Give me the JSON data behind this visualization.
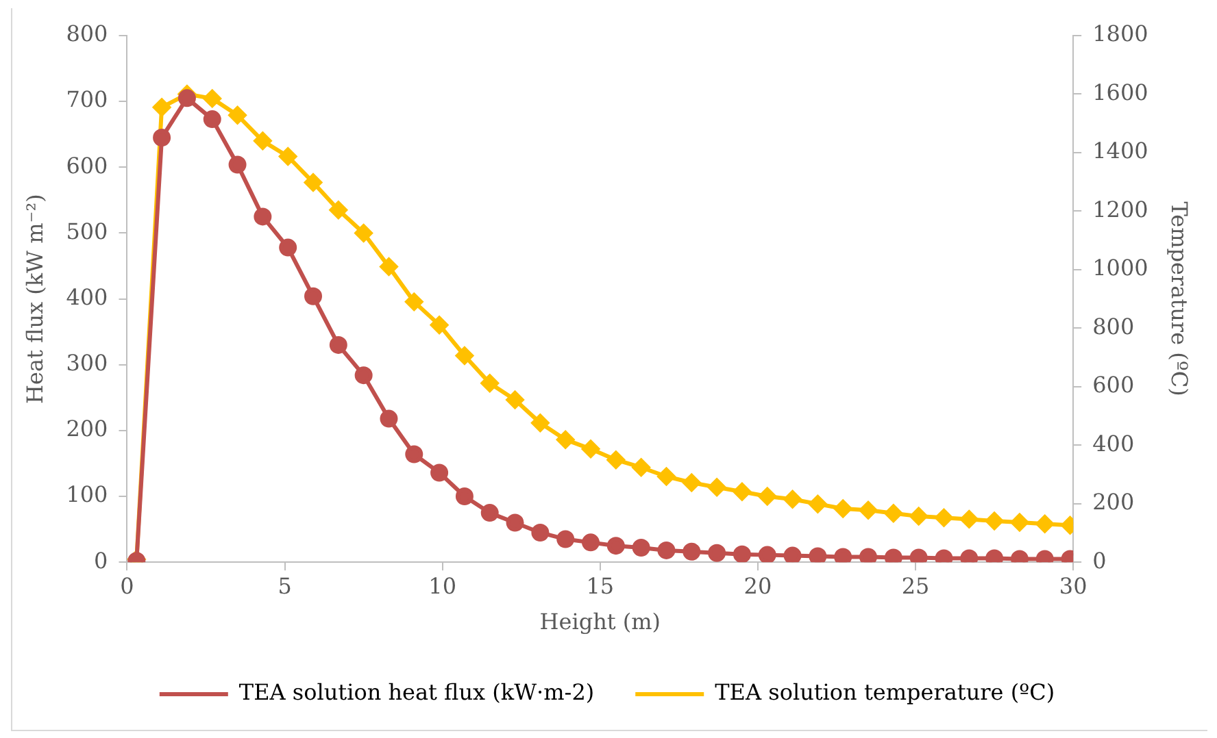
{
  "chart_data": {
    "type": "line",
    "xlabel": "Height (m)",
    "ylabel": "Heat flux (kW m⁻²)",
    "y2label": "Temperature (ºC)",
    "x": [
      0.3,
      1.1,
      1.9,
      2.7,
      3.5,
      4.3,
      5.1,
      5.9,
      6.7,
      7.5,
      8.3,
      9.1,
      9.9,
      10.7,
      11.5,
      12.3,
      13.1,
      13.9,
      14.7,
      15.5,
      16.3,
      17.1,
      17.9,
      18.7,
      19.5,
      20.3,
      21.1,
      21.9,
      22.7,
      23.5,
      24.3,
      25.1,
      25.9,
      26.7,
      27.5,
      28.3,
      29.1,
      29.9
    ],
    "series": [
      {
        "name": "TEA solution heat flux (kW·m-2)",
        "color": "#c0504d",
        "marker": "circle",
        "values": [
          2,
          645,
          705,
          673,
          604,
          525,
          478,
          404,
          330,
          284,
          218,
          164,
          136,
          100,
          75,
          60,
          45,
          35,
          30,
          25,
          22,
          18,
          16,
          14,
          12,
          11,
          10,
          9,
          8,
          8,
          7,
          7,
          6,
          6,
          6,
          5,
          5,
          5
        ]
      },
      {
        "name": "TEA solution temperature (ºC)",
        "color": "#ffc000",
        "marker": "diamond",
        "axis": "y2",
        "values": [
          10,
          1555,
          1600,
          1585,
          1528,
          1440,
          1387,
          1298,
          1204,
          1125,
          1010,
          890,
          811,
          706,
          612,
          555,
          476,
          419,
          387,
          350,
          324,
          293,
          272,
          256,
          241,
          225,
          215,
          199,
          183,
          178,
          167,
          157,
          152,
          147,
          141,
          136,
          131,
          126
        ]
      }
    ],
    "xlim": [
      0,
      30
    ],
    "xticks": [
      0,
      5,
      10,
      15,
      20,
      25,
      30
    ],
    "ylim": [
      0,
      800
    ],
    "yticks": [
      0,
      100,
      200,
      300,
      400,
      500,
      600,
      700,
      800
    ],
    "y2lim": [
      0,
      1800
    ],
    "y2ticks": [
      0,
      200,
      400,
      600,
      800,
      1000,
      1200,
      1400,
      1600,
      1800
    ],
    "grid": false,
    "legend": "bottom",
    "line_style": "solid"
  }
}
